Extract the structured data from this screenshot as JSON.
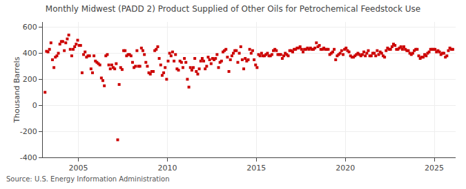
{
  "chart_data": {
    "type": "scatter",
    "title": "Monthly Midwest (PADD 2) Product Supplied of Other Oils for Petrochemical Feedstock Use",
    "y_label": "Thousand Barrels",
    "annotations": [
      "Source: U.S. Energy Information Administration"
    ],
    "color": "#cc0000",
    "marker": "square",
    "grid": true,
    "xlim": [
      2003.0,
      2026.2
    ],
    "ylim": [
      -400,
      640
    ],
    "xticks": [
      2005,
      2010,
      2015,
      2020,
      2025
    ],
    "yticks": [
      -400,
      -200,
      0,
      200,
      400,
      600
    ],
    "x": [
      2003.125,
      2003.208333,
      2003.291667,
      2003.375,
      2003.458333,
      2003.541667,
      2003.625,
      2003.708333,
      2003.791667,
      2003.875,
      2003.958333,
      2004.041667,
      2004.125,
      2004.208333,
      2004.291667,
      2004.375,
      2004.458333,
      2004.541667,
      2004.625,
      2004.708333,
      2004.791667,
      2004.875,
      2004.958333,
      2005.041667,
      2005.125,
      2005.208333,
      2005.291667,
      2005.375,
      2005.458333,
      2005.541667,
      2005.625,
      2005.708333,
      2005.791667,
      2005.875,
      2005.958333,
      2006.041667,
      2006.125,
      2006.208333,
      2006.291667,
      2006.375,
      2006.458333,
      2006.541667,
      2006.625,
      2006.708333,
      2006.791667,
      2006.875,
      2006.958333,
      2007.041667,
      2007.125,
      2007.208333,
      2007.291667,
      2007.375,
      2007.458333,
      2007.541667,
      2007.625,
      2007.708333,
      2007.791667,
      2007.875,
      2007.958333,
      2008.041667,
      2008.125,
      2008.208333,
      2008.291667,
      2008.375,
      2008.458333,
      2008.541667,
      2008.625,
      2008.708333,
      2008.791667,
      2008.875,
      2008.958333,
      2009.041667,
      2009.125,
      2009.208333,
      2009.291667,
      2009.375,
      2009.458333,
      2009.541667,
      2009.625,
      2009.708333,
      2009.791667,
      2009.875,
      2009.958333,
      2010.041667,
      2010.125,
      2010.208333,
      2010.291667,
      2010.375,
      2010.458333,
      2010.541667,
      2010.625,
      2010.708333,
      2010.791667,
      2010.875,
      2010.958333,
      2011.041667,
      2011.125,
      2011.208333,
      2011.291667,
      2011.375,
      2011.458333,
      2011.541667,
      2011.625,
      2011.708333,
      2011.791667,
      2011.875,
      2011.958333,
      2012.041667,
      2012.125,
      2012.208333,
      2012.291667,
      2012.375,
      2012.458333,
      2012.541667,
      2012.625,
      2012.708333,
      2012.791667,
      2012.875,
      2012.958333,
      2013.041667,
      2013.125,
      2013.208333,
      2013.291667,
      2013.375,
      2013.458333,
      2013.541667,
      2013.625,
      2013.708333,
      2013.791667,
      2013.875,
      2013.958333,
      2014.041667,
      2014.125,
      2014.208333,
      2014.291667,
      2014.375,
      2014.458333,
      2014.541667,
      2014.625,
      2014.708333,
      2014.791667,
      2014.875,
      2014.958333,
      2015.041667,
      2015.125,
      2015.208333,
      2015.291667,
      2015.375,
      2015.458333,
      2015.541667,
      2015.625,
      2015.708333,
      2015.791667,
      2015.875,
      2015.958333,
      2016.041667,
      2016.125,
      2016.208333,
      2016.291667,
      2016.375,
      2016.458333,
      2016.541667,
      2016.625,
      2016.708333,
      2016.791667,
      2016.875,
      2016.958333,
      2017.041667,
      2017.125,
      2017.208333,
      2017.291667,
      2017.375,
      2017.458333,
      2017.541667,
      2017.625,
      2017.708333,
      2017.791667,
      2017.875,
      2017.958333,
      2018.041667,
      2018.125,
      2018.208333,
      2018.291667,
      2018.375,
      2018.458333,
      2018.541667,
      2018.625,
      2018.708333,
      2018.791667,
      2018.875,
      2018.958333,
      2019.041667,
      2019.125,
      2019.208333,
      2019.291667,
      2019.375,
      2019.458333,
      2019.541667,
      2019.625,
      2019.708333,
      2019.791667,
      2019.875,
      2019.958333,
      2020.041667,
      2020.125,
      2020.208333,
      2020.291667,
      2020.375,
      2020.458333,
      2020.541667,
      2020.625,
      2020.708333,
      2020.791667,
      2020.875,
      2020.958333,
      2021.041667,
      2021.125,
      2021.208333,
      2021.291667,
      2021.375,
      2021.458333,
      2021.541667,
      2021.625,
      2021.708333,
      2021.791667,
      2021.875,
      2021.958333,
      2022.041667,
      2022.125,
      2022.208333,
      2022.291667,
      2022.375,
      2022.458333,
      2022.541667,
      2022.625,
      2022.708333,
      2022.791667,
      2022.875,
      2022.958333,
      2023.041667,
      2023.125,
      2023.208333,
      2023.291667,
      2023.375,
      2023.458333,
      2023.541667,
      2023.625,
      2023.708333,
      2023.791667,
      2023.875,
      2023.958333,
      2024.041667,
      2024.125,
      2024.208333,
      2024.291667,
      2024.375,
      2024.458333,
      2024.541667,
      2024.625,
      2024.708333,
      2024.791667,
      2024.875,
      2024.958333,
      2025.041667,
      2025.125,
      2025.208333,
      2025.291667,
      2025.375,
      2025.458333,
      2025.541667,
      2025.625,
      2025.708333,
      2025.791667,
      2025.875,
      2025.958333,
      2026.041667
    ],
    "values": [
      100,
      415,
      410,
      430,
      480,
      350,
      290,
      370,
      380,
      400,
      470,
      490,
      490,
      420,
      480,
      510,
      540,
      430,
      380,
      430,
      450,
      470,
      500,
      460,
      460,
      250,
      390,
      410,
      370,
      380,
      380,
      280,
      250,
      380,
      340,
      330,
      320,
      310,
      210,
      190,
      150,
      380,
      390,
      310,
      280,
      310,
      290,
      280,
      320,
      -265,
      160,
      290,
      275,
      420,
      420,
      380,
      390,
      390,
      380,
      330,
      290,
      300,
      420,
      300,
      300,
      440,
      420,
      390,
      330,
      300,
      250,
      240,
      260,
      260,
      420,
      430,
      450,
      360,
      310,
      230,
      250,
      290,
      200,
      340,
      400,
      380,
      410,
      340,
      390,
      280,
      270,
      340,
      330,
      290,
      360,
      330,
      200,
      140,
      290,
      270,
      290,
      360,
      260,
      240,
      280,
      340,
      360,
      340,
      280,
      300,
      370,
      350,
      320,
      360,
      350,
      360,
      390,
      290,
      330,
      340,
      410,
      420,
      430,
      370,
      260,
      350,
      380,
      400,
      420,
      420,
      330,
      400,
      450,
      350,
      280,
      360,
      340,
      350,
      430,
      400,
      420,
      350,
      310,
      290,
      390,
      380,
      400,
      380,
      380,
      390,
      400,
      380,
      380,
      390,
      420,
      430,
      420,
      390,
      390,
      390,
      360,
      380,
      400,
      390,
      380,
      420,
      420,
      410,
      430,
      430,
      440,
      440,
      450,
      430,
      410,
      430,
      430,
      440,
      430,
      440,
      430,
      430,
      440,
      480,
      450,
      460,
      430,
      430,
      440,
      430,
      430,
      430,
      390,
      400,
      410,
      430,
      350,
      380,
      390,
      400,
      420,
      390,
      430,
      440,
      420,
      410,
      380,
      370,
      370,
      380,
      390,
      400,
      390,
      380,
      390,
      410,
      380,
      400,
      420,
      380,
      380,
      400,
      400,
      380,
      420,
      390,
      410,
      400,
      380,
      370,
      420,
      440,
      430,
      430,
      450,
      470,
      460,
      430,
      430,
      440,
      450,
      430,
      450,
      430,
      420,
      420,
      400,
      390,
      400,
      420,
      430,
      430,
      380,
      360,
      370,
      370,
      390,
      380,
      400,
      410,
      430,
      430,
      430,
      430,
      410,
      420,
      410,
      390,
      400,
      400,
      370,
      380,
      420,
      440,
      430,
      430
    ]
  }
}
